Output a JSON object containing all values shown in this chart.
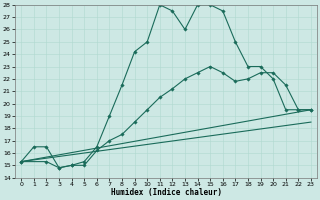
{
  "xlabel": "Humidex (Indice chaleur)",
  "bg_color": "#cde8e4",
  "line_color": "#1a6b5a",
  "grid_color": "#b0d8d0",
  "xlim": [
    -0.5,
    23.5
  ],
  "ylim": [
    14,
    28
  ],
  "yticks": [
    14,
    15,
    16,
    17,
    18,
    19,
    20,
    21,
    22,
    23,
    24,
    25,
    26,
    27,
    28
  ],
  "xticks": [
    0,
    1,
    2,
    3,
    4,
    5,
    6,
    7,
    8,
    9,
    10,
    11,
    12,
    13,
    14,
    15,
    16,
    17,
    18,
    19,
    20,
    21,
    22,
    23
  ],
  "line1_x": [
    0,
    1,
    2,
    3,
    4,
    5,
    6,
    7,
    8,
    9,
    10,
    11,
    12,
    13,
    14,
    15,
    16,
    17,
    18,
    19,
    20,
    21,
    22,
    23
  ],
  "line1_y": [
    15.3,
    16.5,
    16.5,
    14.8,
    15.0,
    15.3,
    16.5,
    19.0,
    21.5,
    24.2,
    25.0,
    28.0,
    27.5,
    26.0,
    28.0,
    28.0,
    27.5,
    25.0,
    23.0,
    23.0,
    22.0,
    19.5,
    19.5,
    19.5
  ],
  "line2_x": [
    0,
    2,
    3,
    4,
    5,
    6,
    7,
    8,
    9,
    10,
    11,
    12,
    13,
    14,
    15,
    16,
    17,
    18,
    19,
    20,
    21,
    22,
    23
  ],
  "line2_y": [
    15.3,
    15.3,
    14.8,
    15.0,
    15.0,
    16.2,
    17.0,
    17.5,
    18.5,
    19.5,
    20.5,
    21.2,
    22.0,
    22.5,
    23.0,
    22.5,
    21.8,
    22.0,
    22.5,
    22.5,
    21.5,
    19.5,
    19.5
  ],
  "line3_x": [
    0,
    23
  ],
  "line3_y": [
    15.3,
    19.5
  ],
  "line4_x": [
    0,
    23
  ],
  "line4_y": [
    15.3,
    18.5
  ]
}
